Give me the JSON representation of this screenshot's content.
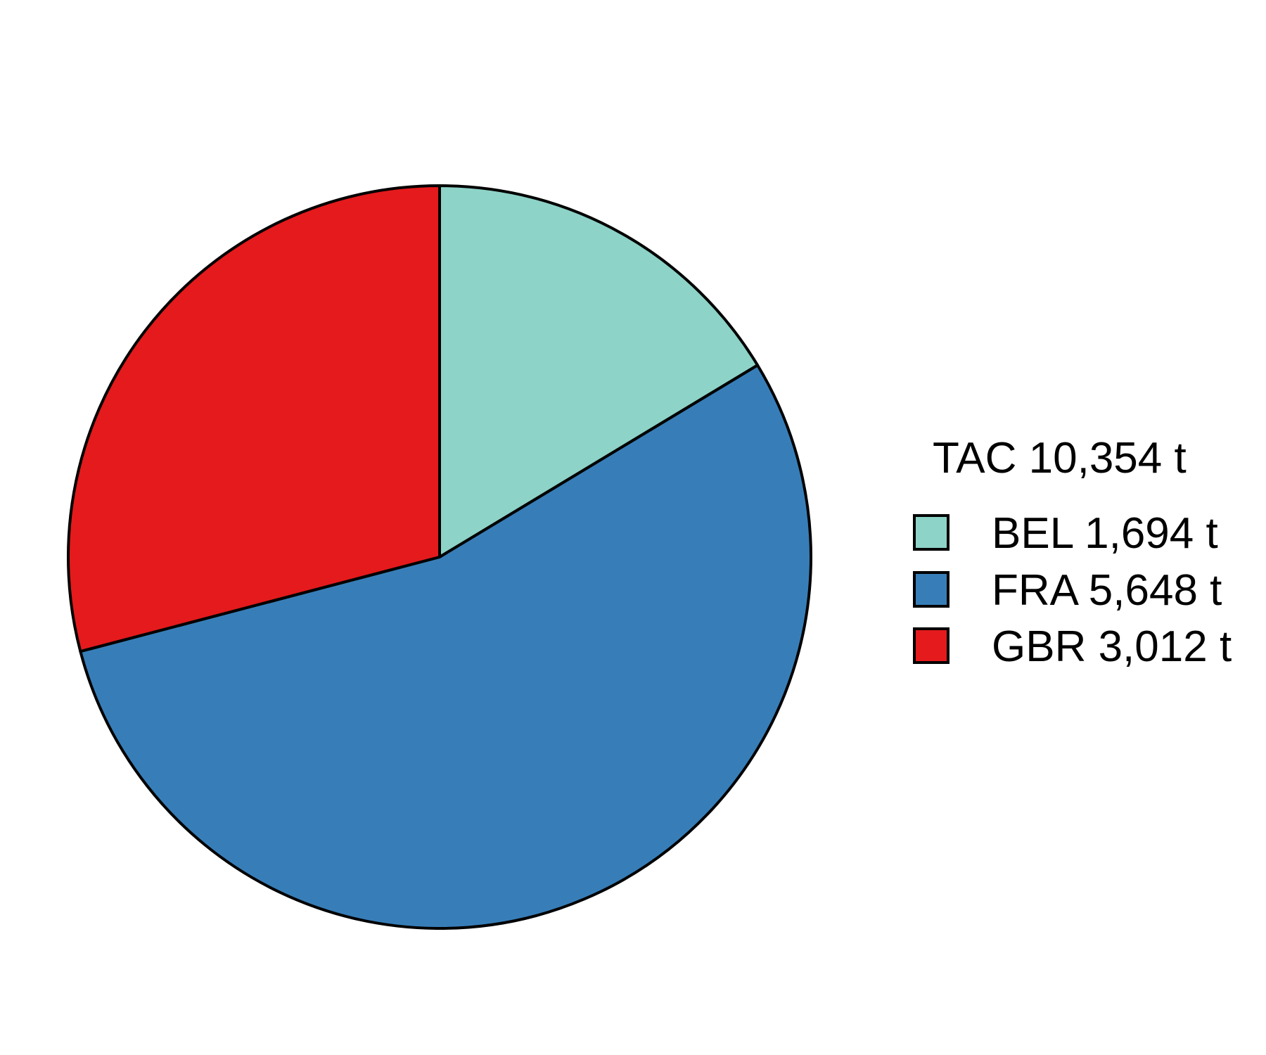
{
  "chart_data": {
    "type": "pie",
    "legend_title": "TAC 10,354 t",
    "legend_position": "right",
    "start": "12 o'clock",
    "direction": "clockwise",
    "slices": [
      {
        "key": "BEL",
        "label": "BEL 1,694 t",
        "value": 1694,
        "color": "#8dd3c7"
      },
      {
        "key": "FRA",
        "label": "FRA 5,648 t",
        "value": 5648,
        "color": "#377eb8"
      },
      {
        "key": "GBR",
        "label": "GBR 3,012 t",
        "value": 3012,
        "color": "#e41a1c"
      }
    ]
  }
}
